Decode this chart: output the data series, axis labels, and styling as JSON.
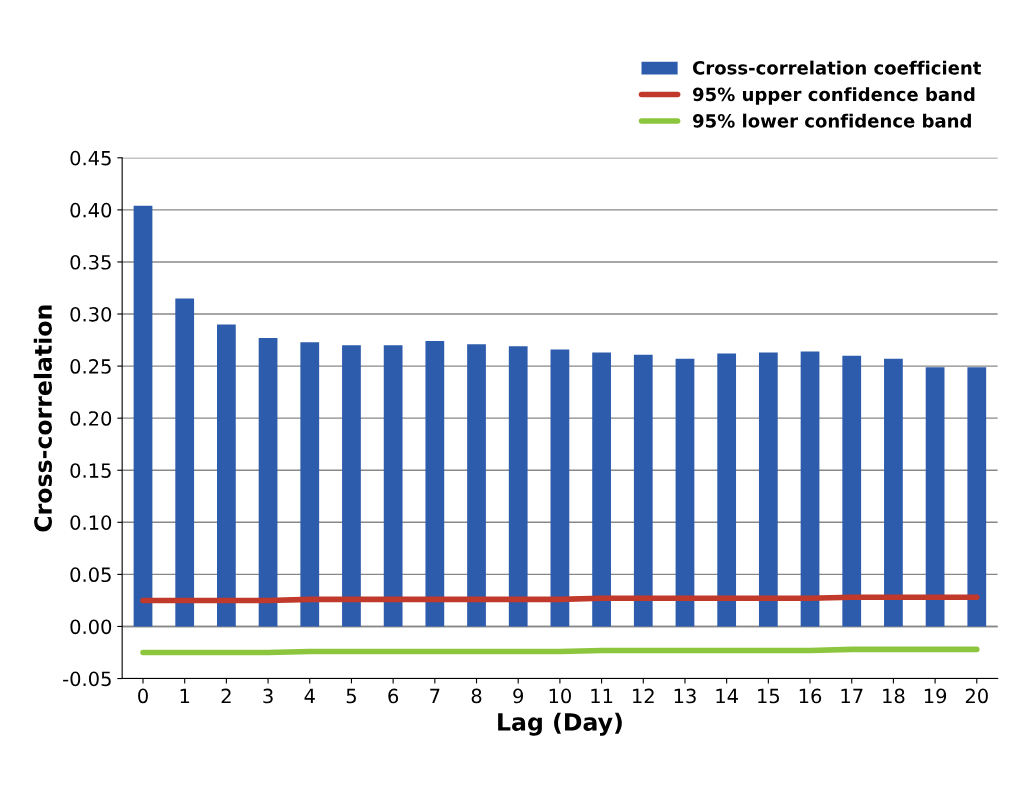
{
  "chart_data": {
    "type": "bar",
    "xlabel": "Lag (Day)",
    "ylabel": "Cross-correlation",
    "x": [
      0,
      1,
      2,
      3,
      4,
      5,
      6,
      7,
      8,
      9,
      10,
      11,
      12,
      13,
      14,
      15,
      16,
      17,
      18,
      19,
      20
    ],
    "xlim": [
      -0.5,
      20.5
    ],
    "xticks": [
      0,
      1,
      2,
      3,
      4,
      5,
      6,
      7,
      8,
      9,
      10,
      11,
      12,
      13,
      14,
      15,
      16,
      17,
      18,
      19,
      20
    ],
    "ylim": [
      -0.05,
      0.45
    ],
    "yticks": [
      {
        "value": -0.05,
        "label": "-0.05"
      },
      {
        "value": 0,
        "label": "0.00"
      },
      {
        "value": 0.05,
        "label": "0.05"
      },
      {
        "value": 0.1,
        "label": "0.10"
      },
      {
        "value": 0.15,
        "label": "0.15"
      },
      {
        "value": 0.2,
        "label": "0.20"
      },
      {
        "value": 0.25,
        "label": "0.25"
      },
      {
        "value": 0.3,
        "label": "0.30"
      },
      {
        "value": 0.35,
        "label": "0.35"
      },
      {
        "value": 0.4,
        "label": "0.40"
      },
      {
        "value": 0.45,
        "label": "0.45"
      }
    ],
    "grid": "y",
    "legend": "top right",
    "series": [
      {
        "name": "Cross-correlation coefficient",
        "color": "#2e5cad",
        "values": [
          0.404,
          0.315,
          0.29,
          0.277,
          0.273,
          0.27,
          0.27,
          0.274,
          0.271,
          0.269,
          0.266,
          0.263,
          0.261,
          0.257,
          0.262,
          0.263,
          0.264,
          0.26,
          0.257,
          0.249,
          0.249
        ]
      },
      {
        "name": "95% upper confidence band",
        "type": "line",
        "color": "#c0392b",
        "values": [
          0.025,
          0.025,
          0.025,
          0.025,
          0.026,
          0.026,
          0.026,
          0.026,
          0.026,
          0.026,
          0.026,
          0.027,
          0.027,
          0.027,
          0.027,
          0.027,
          0.027,
          0.028,
          0.028,
          0.028,
          0.028
        ]
      },
      {
        "name": "95% lower confidence band",
        "type": "line",
        "color": "#8cc63f",
        "values": [
          -0.025,
          -0.025,
          -0.025,
          -0.025,
          -0.024,
          -0.024,
          -0.024,
          -0.024,
          -0.024,
          -0.024,
          -0.024,
          -0.023,
          -0.023,
          -0.023,
          -0.023,
          -0.023,
          -0.023,
          -0.022,
          -0.022,
          -0.022,
          -0.022
        ]
      }
    ]
  }
}
